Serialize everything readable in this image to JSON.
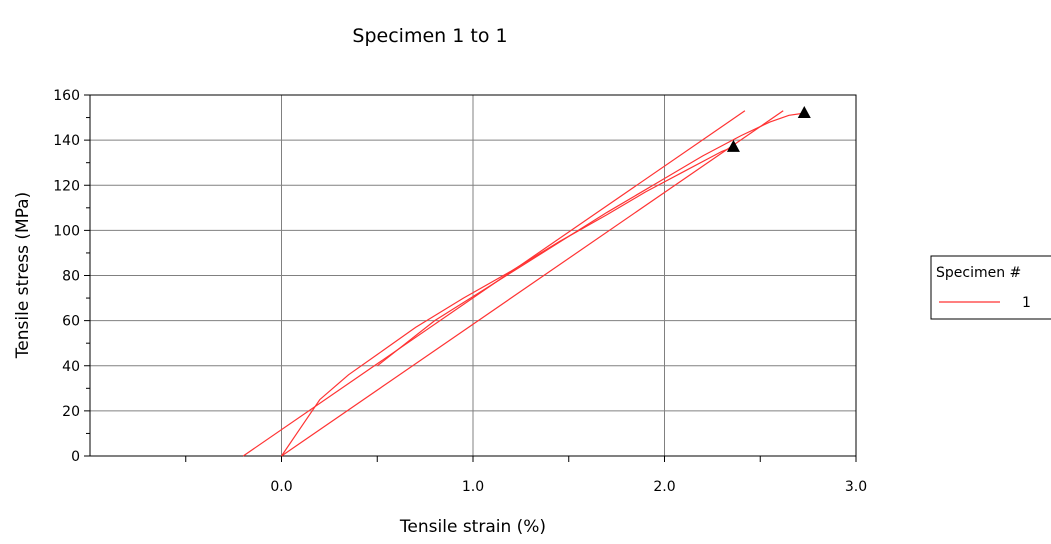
{
  "chart_data": {
    "type": "line",
    "title": "Specimen 1 to 1",
    "xlabel": "Tensile strain (%)",
    "ylabel": "Tensile stress (MPa)",
    "xlim": [
      -1.0,
      3.0
    ],
    "ylim": [
      0,
      160
    ],
    "x_ticks": [
      0.0,
      1.0,
      2.0,
      3.0
    ],
    "x_tick_labels": [
      "0.0",
      "1.0",
      "2.0",
      "3.0"
    ],
    "y_ticks": [
      0,
      20,
      40,
      60,
      80,
      100,
      120,
      140,
      160
    ],
    "y_tick_labels": [
      "0",
      "20",
      "40",
      "60",
      "80",
      "100",
      "120",
      "140",
      "160"
    ],
    "grid": true,
    "legend": {
      "title": "Specimen #",
      "position": "right"
    },
    "colors": {
      "series": "#ff3333",
      "grid": "#808080",
      "marker": "#000000"
    },
    "series": [
      {
        "name": "1",
        "curves": [
          {
            "x": [
              0.0,
              0.08,
              0.2,
              0.35,
              0.5,
              0.7,
              0.95,
              1.2,
              1.45,
              1.7,
              1.9,
              2.1,
              2.3,
              2.36
            ],
            "y": [
              0,
              10,
              25,
              36,
              45,
              57,
              70,
              82,
              95,
              107,
              117,
              126,
              135,
              137
            ]
          },
          {
            "x": [
              0.0,
              2.62
            ],
            "y": [
              0,
              153
            ]
          },
          {
            "x": [
              -0.2,
              2.42
            ],
            "y": [
              0,
              153
            ]
          },
          {
            "x": [
              0.5,
              0.8,
              1.1,
              1.4,
              1.7,
              2.0,
              2.2,
              2.4,
              2.55,
              2.65,
              2.73
            ],
            "y": [
              40,
              60,
              76,
              92,
              108,
              123,
              133,
              142,
              148,
              151,
              152
            ]
          }
        ]
      }
    ],
    "markers": [
      {
        "x": 2.36,
        "y": 137,
        "shape": "triangle"
      },
      {
        "x": 2.73,
        "y": 152,
        "shape": "triangle"
      }
    ]
  }
}
